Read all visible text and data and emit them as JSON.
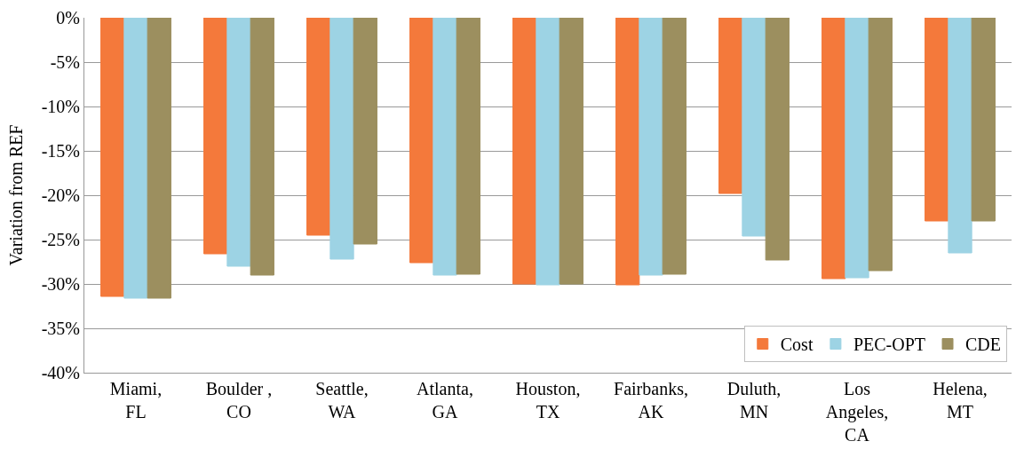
{
  "chart_data": {
    "type": "bar",
    "ylabel": "Variation from REF",
    "categories": [
      "Miami,\nFL",
      "Boulder ,\nCO",
      "Seattle,\nWA",
      "Atlanta,\nGA",
      "Houston,\nTX",
      "Fairbanks,\nAK",
      "Duluth,\nMN",
      "Los\nAngeles,\nCA",
      "Helena,\nMT"
    ],
    "series": [
      {
        "name": "Cost",
        "color": "#f4793b",
        "values": [
          -31.4,
          -26.6,
          -24.5,
          -27.6,
          -30.0,
          -30.1,
          -19.8,
          -29.4,
          -22.9
        ]
      },
      {
        "name": "PEC-OPT",
        "color": "#9dd3e4",
        "values": [
          -31.6,
          -28.0,
          -27.2,
          -29.0,
          -30.1,
          -29.0,
          -24.6,
          -29.3,
          -26.5
        ]
      },
      {
        "name": "CDE",
        "color": "#9c8f5f",
        "values": [
          -31.6,
          -29.0,
          -25.5,
          -28.9,
          -30.0,
          -28.9,
          -27.3,
          -28.5,
          -22.9
        ]
      }
    ],
    "ylim": [
      -40,
      0
    ],
    "yticks": [
      {
        "value": 0,
        "label": "0%"
      },
      {
        "value": -5,
        "label": "-5%"
      },
      {
        "value": -10,
        "label": "-10%"
      },
      {
        "value": -15,
        "label": "-15%"
      },
      {
        "value": -20,
        "label": "-20%"
      },
      {
        "value": -25,
        "label": "-25%"
      },
      {
        "value": -30,
        "label": "-30%"
      },
      {
        "value": -35,
        "label": "-35%"
      },
      {
        "value": -40,
        "label": "-40%"
      }
    ],
    "grid": "y",
    "legend": "bottom right"
  }
}
